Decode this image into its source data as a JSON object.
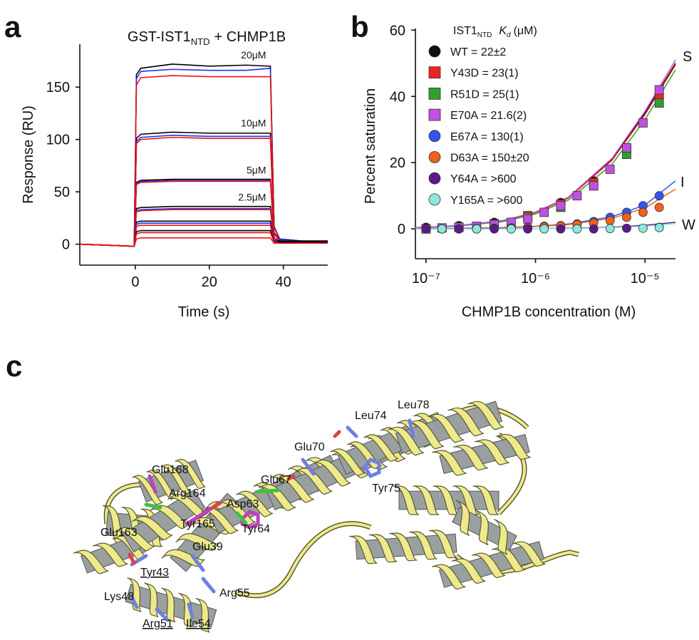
{
  "chart_data": [
    {
      "type": "line",
      "panel_label": "a",
      "title": [
        "GST-IST1",
        "NTD",
        "+ CHMP1B"
      ],
      "x_label": "Time (s)",
      "y_label": "Response (RU)",
      "xlim": [
        -15,
        52
      ],
      "xticks": [
        0,
        20,
        40
      ],
      "ylim": [
        -20,
        191
      ],
      "yticks": [
        0,
        50,
        100,
        150
      ],
      "x": [
        -15,
        -0.3,
        0.3,
        1.5,
        10,
        20,
        30,
        36.5,
        37.5,
        39,
        45,
        52
      ],
      "series": [
        {
          "name": "20μM",
          "color": "#000000",
          "values": [
            0,
            -2,
            162,
            168,
            172,
            170,
            171,
            170,
            17,
            5,
            3,
            3
          ]
        },
        {
          "color": "#2233ee",
          "values": [
            0,
            -2,
            158,
            165,
            167,
            166,
            166,
            168,
            17,
            5,
            3,
            3
          ]
        },
        {
          "color": "#ee1111",
          "values": [
            0,
            -2,
            152,
            159,
            161,
            160,
            160,
            160,
            16,
            4,
            2,
            2
          ]
        },
        {
          "name": "10μM",
          "color": "#000000",
          "values": [
            0,
            -2,
            101,
            105,
            107,
            106,
            106,
            106,
            11,
            4,
            3,
            3
          ]
        },
        {
          "color": "#2233ee",
          "values": [
            0,
            -2,
            98,
            102,
            104,
            103,
            103,
            103,
            10,
            4,
            2,
            2
          ]
        },
        {
          "color": "#ee1111",
          "values": [
            0,
            -2,
            96,
            100,
            102,
            101,
            101,
            101,
            10,
            3,
            2,
            2
          ]
        },
        {
          "name": "5μM",
          "color": "#000000",
          "values": [
            0,
            -2,
            59,
            61,
            62,
            62,
            62,
            62,
            6,
            3,
            2,
            2
          ]
        },
        {
          "color": "#2233ee",
          "values": [
            0,
            -2,
            58,
            60,
            61,
            61,
            61,
            61,
            6,
            3,
            2,
            2
          ]
        },
        {
          "color": "#ee1111",
          "values": [
            0,
            -2,
            57,
            59,
            60,
            60,
            60,
            60,
            6,
            3,
            2,
            2
          ]
        },
        {
          "name": "2.5μM",
          "color": "#000000",
          "values": [
            0,
            -2,
            34,
            35,
            36,
            36,
            36,
            36,
            4,
            3,
            2,
            2
          ]
        },
        {
          "color": "#2233ee",
          "values": [
            0,
            -2,
            32,
            33,
            34,
            34,
            34,
            34,
            4,
            2,
            2,
            2
          ]
        },
        {
          "color": "#ee1111",
          "values": [
            0,
            -2,
            31,
            32,
            33,
            33,
            33,
            33,
            3,
            2,
            1,
            1
          ]
        },
        {
          "color": "#000000",
          "values": [
            0,
            -2,
            21,
            22,
            22,
            22,
            22,
            22,
            3,
            2,
            2,
            2
          ]
        },
        {
          "color": "#2233ee",
          "values": [
            0,
            -2,
            19,
            20,
            20,
            20,
            20,
            20,
            3,
            2,
            1,
            1
          ]
        },
        {
          "color": "#ee1111",
          "values": [
            0,
            -2,
            17,
            18,
            18,
            18,
            18,
            18,
            2,
            2,
            1,
            1
          ]
        },
        {
          "color": "#000000",
          "values": [
            0,
            -2,
            12,
            13,
            13,
            13,
            13,
            13,
            2,
            2,
            2,
            2
          ]
        },
        {
          "color": "#ee1111",
          "values": [
            0,
            -2,
            10,
            11,
            11,
            11,
            11,
            11,
            2,
            1,
            1,
            1
          ]
        },
        {
          "color": "#ee1111",
          "values": [
            0,
            -2,
            5,
            6,
            6,
            6,
            6,
            6,
            1,
            1,
            1,
            1
          ]
        }
      ]
    },
    {
      "type": "scatter",
      "panel_label": "b",
      "log_x": true,
      "x_label": "CHMP1B concentration (M)",
      "y_label": "Percent saturation",
      "legend_title": [
        "IST1",
        "NTD",
        "K",
        "d",
        "(μM)"
      ],
      "curve_labels": [
        "S",
        "I",
        "W"
      ],
      "xlim": [
        8e-08,
        1.9e-05
      ],
      "xticks": [
        {
          "value": 1e-07,
          "label": "10⁻⁷"
        },
        {
          "value": 1e-06,
          "label": "10⁻⁶"
        },
        {
          "value": 1e-05,
          "label": "10⁻⁵"
        }
      ],
      "ylim": [
        -9,
        60.5
      ],
      "yticks": [
        0,
        20,
        40,
        60
      ],
      "fit_x": [
        8e-08,
        1e-07,
        2e-07,
        5e-07,
        1e-06,
        2e-06,
        5e-06,
        1e-05,
        1.9e-05
      ],
      "series": [
        {
          "name": "WT = 22±2",
          "color": "#111111",
          "marker": "circle",
          "x": [
            1e-07,
            2e-07,
            4.2e-07,
            8.5e-07,
            1.7e-06,
            3.4e-06,
            6.8e-06,
            1.35e-05
          ],
          "values": [
            0.5,
            1,
            2,
            4,
            8,
            14.5,
            24.5,
            40.5
          ],
          "fit": [
            0.4,
            0.5,
            1,
            2.5,
            5,
            9.5,
            21,
            35,
            50
          ]
        },
        {
          "name": "Y43D = 23(1)",
          "color": "#ee2222",
          "marker": "square",
          "x": [
            1e-07,
            2e-07,
            4.2e-07,
            8.5e-07,
            1.7e-06,
            3.4e-06,
            6.8e-06,
            1.35e-05
          ],
          "values": [
            0,
            0.5,
            1.5,
            4,
            7.5,
            14,
            24,
            40
          ],
          "fit": [
            0.4,
            0.5,
            1,
            2.4,
            4.9,
            9.3,
            20.7,
            34.5,
            49.5
          ]
        },
        {
          "name": "R51D = 25(1)",
          "color": "#2ea02e",
          "marker": "square",
          "x": [
            1e-07,
            2e-07,
            4.2e-07,
            8.5e-07,
            1.7e-06,
            3.4e-06,
            6.8e-06,
            1.35e-05
          ],
          "values": [
            0,
            0.5,
            1.5,
            3.5,
            6.5,
            13,
            22.5,
            38
          ],
          "fit": [
            0.3,
            0.4,
            0.9,
            2.2,
            4.5,
            8.7,
            19.5,
            33,
            48
          ]
        },
        {
          "name": "E70A = 21.6(2)",
          "color": "#c050e0",
          "marker": "square",
          "x": [
            1e-07,
            1.4e-07,
            2e-07,
            2.9e-07,
            4.2e-07,
            6e-07,
            8.5e-07,
            1.2e-06,
            1.7e-06,
            2.4e-06,
            3.4e-06,
            4.8e-06,
            6.8e-06,
            9.6e-06,
            1.35e-05
          ],
          "values": [
            0,
            0.3,
            0.5,
            0.8,
            1.3,
            2,
            3,
            5,
            7,
            10,
            13,
            18,
            24.5,
            32,
            42
          ],
          "fit": [
            0.4,
            0.5,
            1,
            2.5,
            5.1,
            9.6,
            21.3,
            35.5,
            51
          ]
        },
        {
          "name": "E67A = 130(1)",
          "color": "#3355ee",
          "marker": "circle",
          "x": [
            1e-07,
            1.4e-07,
            2e-07,
            2.9e-07,
            4.2e-07,
            6e-07,
            8.5e-07,
            1.2e-06,
            1.7e-06,
            2.4e-06,
            3.4e-06,
            4.8e-06,
            6.8e-06,
            9.6e-06,
            1.35e-05
          ],
          "values": [
            0,
            0,
            0,
            0.1,
            0.2,
            0.3,
            0.5,
            0.8,
            1,
            1.5,
            2.2,
            3.5,
            5,
            7,
            10
          ],
          "fit": [
            0.1,
            0.1,
            0.2,
            0.4,
            0.8,
            1.5,
            3.7,
            7.2,
            14.5
          ]
        },
        {
          "name": "D63A = 150±20",
          "color": "#f06020",
          "marker": "circle",
          "x": [
            1e-07,
            1.4e-07,
            2e-07,
            2.9e-07,
            4.2e-07,
            6e-07,
            8.5e-07,
            1.2e-06,
            1.7e-06,
            2.4e-06,
            3.4e-06,
            4.8e-06,
            6.8e-06,
            9.6e-06,
            1.35e-05
          ],
          "values": [
            0,
            0,
            0,
            0,
            0.1,
            0.2,
            0.4,
            0.6,
            0.9,
            1.3,
            1.8,
            2.5,
            3.5,
            5,
            6.5
          ],
          "fit": [
            0.1,
            0.1,
            0.1,
            0.3,
            0.7,
            1.3,
            3.2,
            6.3,
            12
          ]
        },
        {
          "name": "Y64A = >600",
          "color": "#5a1a8c",
          "marker": "circle",
          "x": [
            1e-07,
            2e-07,
            4.2e-07,
            8.5e-07,
            1.7e-06,
            3.4e-06,
            6.8e-06,
            1.35e-05
          ],
          "values": [
            0,
            0,
            0,
            0,
            0,
            0,
            0.2,
            0.5
          ],
          "fit": [
            0,
            0,
            0,
            0.1,
            0.1,
            0.2,
            0.5,
            1.1,
            2
          ]
        },
        {
          "name": "Y165A = >600",
          "color": "#8fe6dc",
          "marker": "circle",
          "x": [
            1.4e-07,
            2.9e-07,
            6e-07,
            1.2e-06,
            2.4e-06,
            4.8e-06,
            9.6e-06,
            1.35e-05
          ],
          "values": [
            0,
            0,
            0,
            0,
            0,
            0.1,
            0.2,
            0.4
          ],
          "fit": [
            0,
            0,
            0,
            0,
            0.1,
            0.1,
            0.4,
            0.8,
            1.6
          ]
        }
      ]
    }
  ],
  "structure": {
    "panel_label": "c",
    "residues": [
      {
        "text": "Glu168"
      },
      {
        "text": "Arg164"
      },
      {
        "text": "Asp63"
      },
      {
        "text": "Glu67"
      },
      {
        "text": "Glu70"
      },
      {
        "text": "Leu74"
      },
      {
        "text": "Leu78"
      },
      {
        "text": "Tyr75"
      },
      {
        "text": "Tyr165"
      },
      {
        "text": "Tyr64"
      },
      {
        "text": "Glu163"
      },
      {
        "text": "Glu39"
      },
      {
        "text": "Tyr43",
        "underline": true
      },
      {
        "text": "Arg55"
      },
      {
        "text": "Lys48"
      },
      {
        "text": "Arg51",
        "underline": true
      },
      {
        "text": "Ile54",
        "underline": true
      }
    ]
  }
}
